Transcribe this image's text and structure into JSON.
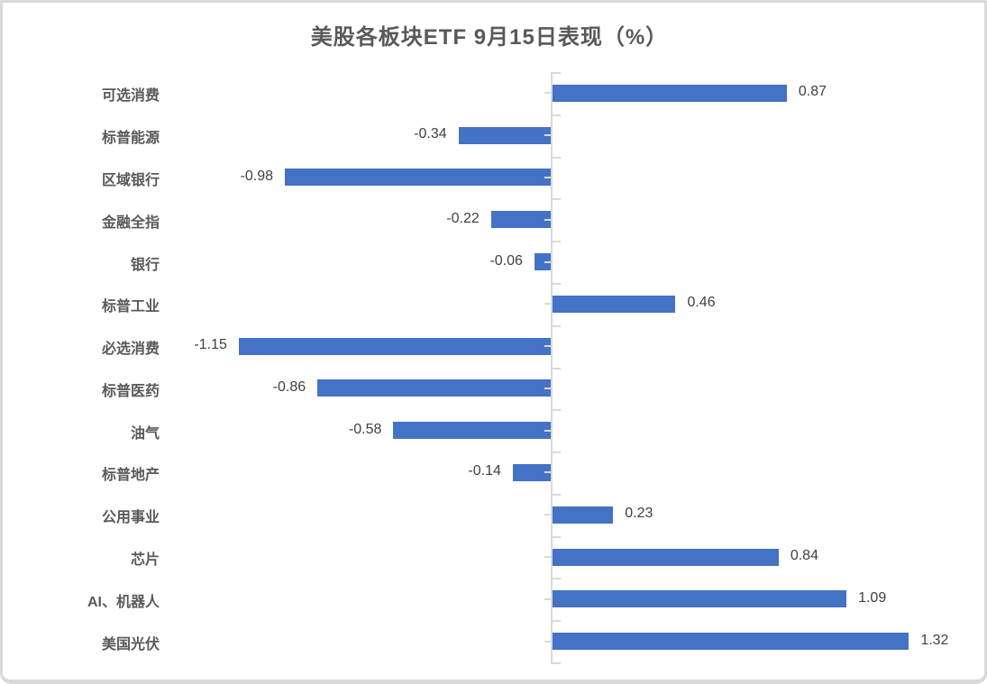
{
  "page": {
    "background": "#ffffff",
    "frame_color": "#d9d9d9"
  },
  "chart_data": {
    "type": "bar",
    "orientation": "horizontal",
    "title": "美股各板块ETF 9月15日表现（%）",
    "categories": [
      "可选消费",
      "标普能源",
      "区域银行",
      "金融全指",
      "银行",
      "标普工业",
      "必选消费",
      "标普医药",
      "油气",
      "标普地产",
      "公用事业",
      "芯片",
      "AI、机器人",
      "美国光伏"
    ],
    "values": [
      0.87,
      -0.34,
      -0.98,
      -0.22,
      -0.06,
      0.46,
      -1.15,
      -0.86,
      -0.58,
      -0.14,
      0.23,
      0.84,
      1.09,
      1.32
    ],
    "value_labels": [
      "0.87",
      "-0.34",
      "-0.98",
      "-0.22",
      "-0.06",
      "0.46",
      "-1.15",
      "-0.86",
      "-0.58",
      "-0.14",
      "0.23",
      "0.84",
      "1.09",
      "1.32"
    ],
    "xlabel": "",
    "ylabel": "",
    "xlim": [
      -1.5,
      1.6
    ],
    "grid": false,
    "legend": null,
    "value_labels_position": "outside-end",
    "bar_color": "#4472C4",
    "axis_color": "#D9D9D9",
    "category_label_color": "#595959",
    "value_label_color": "#404040",
    "title_color": "#595959"
  }
}
